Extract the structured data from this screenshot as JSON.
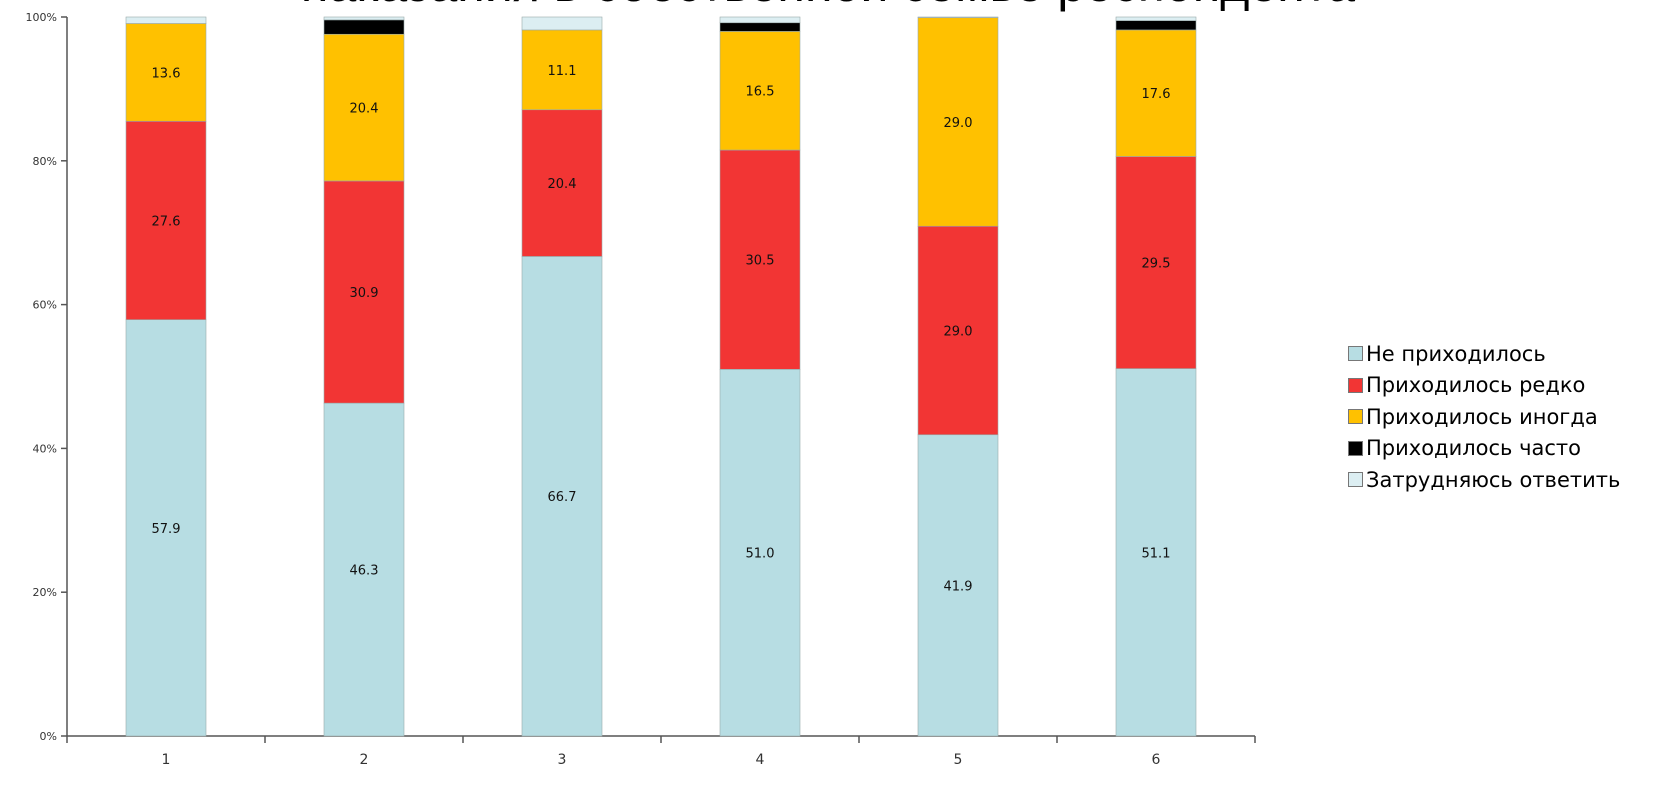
{
  "chart_data": {
    "type": "bar",
    "stacked": true,
    "title": "наказания в собственной семье респондента",
    "categories": [
      "1",
      "2",
      "3",
      "4",
      "5",
      "6"
    ],
    "y_ticks": [
      "0%",
      "20%",
      "40%",
      "60%",
      "80%",
      "100%"
    ],
    "ylim": [
      0,
      100
    ],
    "grid": false,
    "legend_position": "right",
    "series": [
      {
        "name": "Не приходилось",
        "color": "#b7dde3",
        "values": [
          57.9,
          46.3,
          66.7,
          51.0,
          41.9,
          51.1
        ],
        "labels": [
          "57.9",
          "46.3",
          "66.7",
          "51.0",
          "41.9",
          "51.1"
        ]
      },
      {
        "name": "Приходилось редко",
        "color": "#f23534",
        "values": [
          27.6,
          30.9,
          20.4,
          30.5,
          29.0,
          29.5
        ],
        "labels": [
          "27.6",
          "30.9",
          "20.4",
          "30.5",
          "29.0",
          "29.5"
        ]
      },
      {
        "name": "Приходилось иногда",
        "color": "#ffc100",
        "values": [
          13.6,
          20.4,
          11.1,
          16.5,
          29.0,
          17.6
        ],
        "labels": [
          "13.6",
          "20.4",
          "11.1",
          "16.5",
          "29.0",
          "17.6"
        ]
      },
      {
        "name": "Приходилось часто",
        "color": "#000000",
        "values": [
          0,
          2.0,
          0,
          1.2,
          0,
          1.3
        ],
        "labels": [
          "",
          "",
          "",
          "",
          "",
          ""
        ]
      },
      {
        "name": "Затрудняюсь ответить",
        "color": "#dceef2",
        "values": [
          0.9,
          0.4,
          1.8,
          0.8,
          0.1,
          0.5
        ],
        "labels": [
          "",
          "",
          "",
          "",
          "",
          ""
        ]
      }
    ]
  }
}
